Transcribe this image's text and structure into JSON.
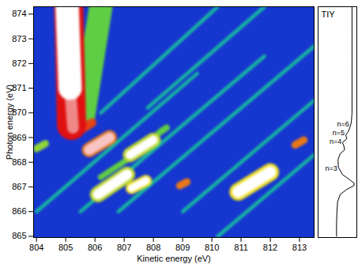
{
  "chart_data": {
    "type": "heatmap",
    "xlabel": "Kinetic energy (eV)",
    "ylabel": "Photon energy (eV)",
    "xlim": [
      803.9,
      813.5
    ],
    "ylim": [
      864.95,
      874.3
    ],
    "xticks": [
      804,
      805,
      806,
      807,
      808,
      809,
      810,
      811,
      812,
      813
    ],
    "yticks": [
      865,
      866,
      867,
      868,
      869,
      870,
      871,
      872,
      873,
      874
    ],
    "zlim": [
      0,
      1
    ],
    "colors": [
      "#1636d0",
      "#00a8f0",
      "#30c850",
      "#f0e020",
      "#e01010",
      "#ffffff"
    ],
    "features": [
      {
        "x": [
          804.0,
          809.5
        ],
        "y": [
          866.0,
          871.6
        ],
        "value": 0.3,
        "width": 0.12
      },
      {
        "x": [
          805.5,
          811.8
        ],
        "y": [
          866.0,
          872.3
        ],
        "value": 0.3,
        "width": 0.12
      },
      {
        "x": [
          806.8,
          813.5
        ],
        "y": [
          866.0,
          872.7
        ],
        "value": 0.3,
        "width": 0.12
      },
      {
        "x": [
          809.0,
          813.5
        ],
        "y": [
          866.0,
          870.5
        ],
        "value": 0.3,
        "width": 0.12
      },
      {
        "x": [
          810.2,
          813.5
        ],
        "y": [
          865.0,
          868.3
        ],
        "value": 0.3,
        "width": 0.12
      },
      {
        "x": [
          806.2,
          810.2
        ],
        "y": [
          870.0,
          874.3
        ],
        "value": 0.3,
        "width": 0.12
      },
      {
        "x": [
          807.8,
          811.8
        ],
        "y": [
          870.2,
          874.3
        ],
        "value": 0.3,
        "width": 0.12
      },
      {
        "x": [
          805.6,
          806.2
        ],
        "y": [
          869.8,
          874.3
        ],
        "value": 0.45,
        "width": 0.8
      },
      {
        "x": [
          806.2,
          808.0
        ],
        "y": [
          867.4,
          868.8
        ],
        "value": 0.45,
        "width": 0.2
      },
      {
        "x": [
          808.2,
          808.45
        ],
        "y": [
          869.2,
          869.4
        ],
        "value": 0.45,
        "width": 0.22
      },
      {
        "x": [
          804.0,
          804.3
        ],
        "y": [
          868.55,
          868.75
        ],
        "value": 0.5,
        "width": 0.25
      },
      {
        "x": [
          806.1,
          807.1
        ],
        "y": [
          866.7,
          867.5
        ],
        "value": 0.55,
        "width": 0.55
      },
      {
        "x": [
          807.2,
          808.0
        ],
        "y": [
          868.3,
          868.9
        ],
        "value": 0.55,
        "width": 0.5
      },
      {
        "x": [
          807.25,
          807.75
        ],
        "y": [
          866.95,
          867.25
        ],
        "value": 0.6,
        "width": 0.4
      },
      {
        "x": [
          810.9,
          812.0
        ],
        "y": [
          866.8,
          867.6
        ],
        "value": 0.6,
        "width": 0.6
      },
      {
        "x": [
          805.8,
          806.5
        ],
        "y": [
          868.5,
          869.0
        ],
        "value": 0.7,
        "width": 0.5
      },
      {
        "x": [
          808.9,
          809.15
        ],
        "y": [
          867.05,
          867.2
        ],
        "value": 0.7,
        "width": 0.25
      },
      {
        "x": [
          812.85,
          813.15
        ],
        "y": [
          868.7,
          868.9
        ],
        "value": 0.7,
        "width": 0.25
      },
      {
        "x": [
          805.5,
          805.9
        ],
        "y": [
          869.3,
          869.6
        ],
        "value": 0.75,
        "width": 0.3
      },
      {
        "x": [
          805.2,
          805.1
        ],
        "y": [
          869.5,
          874.3
        ],
        "value": 0.8,
        "width": 1.0
      },
      {
        "x": [
          805.25,
          805.15
        ],
        "y": [
          869.4,
          871.0
        ],
        "value": 0.9,
        "width": 0.4
      },
      {
        "x": [
          805.15,
          805.05
        ],
        "y": [
          871.0,
          874.3
        ],
        "value": 1.0,
        "width": 0.8
      },
      {
        "x": [
          806.1,
          807.1
        ],
        "y": [
          866.7,
          867.5
        ],
        "value": 1.0,
        "width": 0.35
      },
      {
        "x": [
          807.2,
          808.0
        ],
        "y": [
          868.3,
          868.9
        ],
        "value": 1.0,
        "width": 0.3
      },
      {
        "x": [
          807.25,
          807.75
        ],
        "y": [
          866.95,
          867.25
        ],
        "value": 1.0,
        "width": 0.25
      },
      {
        "x": [
          810.9,
          812.0
        ],
        "y": [
          866.8,
          867.6
        ],
        "value": 1.0,
        "width": 0.4
      },
      {
        "x": [
          805.8,
          806.5
        ],
        "y": [
          868.5,
          869.0
        ],
        "value": 0.95,
        "width": 0.35
      }
    ],
    "tiy": {
      "title": "TIY",
      "xlim": [
        0,
        1.05
      ],
      "y": [
        865.0,
        865.5,
        866.0,
        866.4,
        866.7,
        866.9,
        867.05,
        867.15,
        867.3,
        867.5,
        867.8,
        868.1,
        868.35,
        868.5,
        868.65,
        868.8,
        868.95,
        869.1,
        869.25,
        869.4,
        869.6,
        870.0,
        871.0,
        872.0,
        873.0,
        874.3
      ],
      "values": [
        0.5,
        0.5,
        0.51,
        0.53,
        0.6,
        0.78,
        0.97,
        0.98,
        0.85,
        0.66,
        0.55,
        0.54,
        0.6,
        0.72,
        0.7,
        0.66,
        0.78,
        0.75,
        0.82,
        0.86,
        0.9,
        0.92,
        0.92,
        0.92,
        0.92,
        0.92
      ],
      "annotations": [
        {
          "text": "n=6",
          "x": 0.84,
          "y": 869.55
        },
        {
          "text": "n=5",
          "x": 0.72,
          "y": 869.2
        },
        {
          "text": "n=4",
          "x": 0.64,
          "y": 868.85
        },
        {
          "text": "n=3",
          "x": 0.52,
          "y": 867.75
        }
      ]
    }
  }
}
